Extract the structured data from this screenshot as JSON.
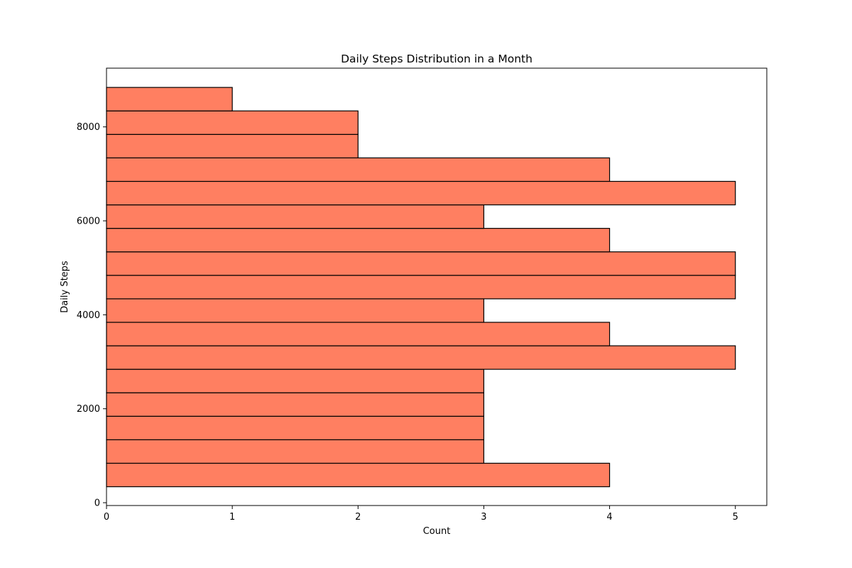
{
  "chart_data": {
    "type": "bar",
    "orientation": "horizontal",
    "title": "Daily Steps Distribution in a Month",
    "xlabel": "Count",
    "ylabel": "Daily Steps",
    "xlim": [
      0,
      5.25
    ],
    "ylim": [
      -60,
      9250
    ],
    "x_ticks": [
      0,
      1,
      2,
      3,
      4,
      5
    ],
    "y_ticks": [
      0,
      2000,
      4000,
      6000,
      8000
    ],
    "bin_edges": [
      340,
      840,
      1340,
      1840,
      2340,
      2840,
      3340,
      3840,
      4340,
      4840,
      5340,
      5840,
      6340,
      6840,
      7340,
      7840,
      8340,
      8840
    ],
    "values": [
      4,
      3,
      3,
      3,
      3,
      5,
      4,
      3,
      5,
      5,
      4,
      3,
      5,
      4,
      2,
      2,
      1
    ],
    "bar_color": "#ff7f61",
    "edge_color": "#000000",
    "grid": false,
    "legend": "none"
  }
}
